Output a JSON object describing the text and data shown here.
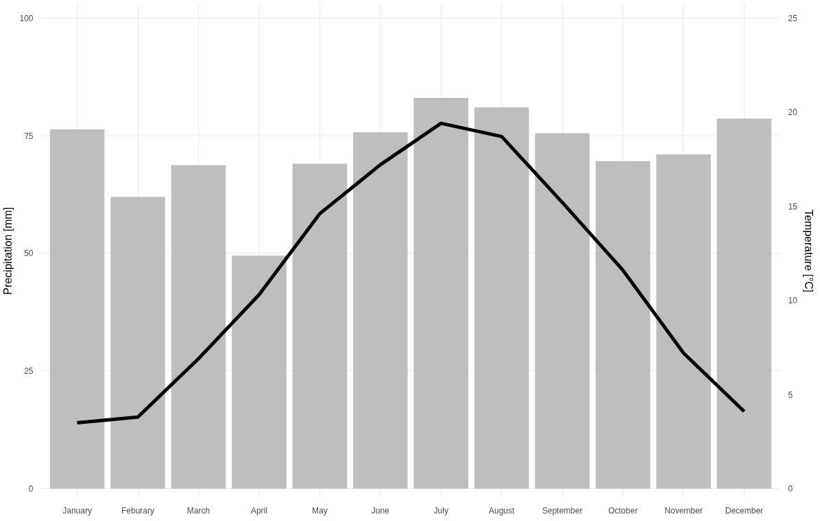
{
  "chart_data": {
    "type": "bar",
    "ylabel": "Precipitation [mm]",
    "y2label": "Temperature [°C]",
    "categories": [
      "January",
      "Feburary",
      "March",
      "April",
      "May",
      "June",
      "July",
      "August",
      "September",
      "October",
      "November",
      "December"
    ],
    "series": [
      {
        "color": "#bebebe",
        "values": [
          76.3,
          62.0,
          68.7,
          49.5,
          69.0,
          75.7,
          83.0,
          81.0,
          75.5,
          69.6,
          71.0,
          78.6
        ]
      },
      {
        "type": "line",
        "axis": "y2",
        "color": "#000000",
        "values": [
          3.5,
          3.8,
          6.9,
          10.3,
          14.6,
          17.2,
          19.4,
          18.7,
          15.2,
          11.6,
          7.2,
          4.1
        ]
      }
    ],
    "ylim": [
      -2,
      103
    ],
    "yticks": [
      0,
      25,
      50,
      75,
      100
    ],
    "y2lim": [
      -0.5,
      25.75
    ],
    "y2ticks": [
      0,
      5,
      10,
      15,
      20,
      25
    ],
    "grid": true,
    "marker": "none",
    "line_style": "solid"
  }
}
